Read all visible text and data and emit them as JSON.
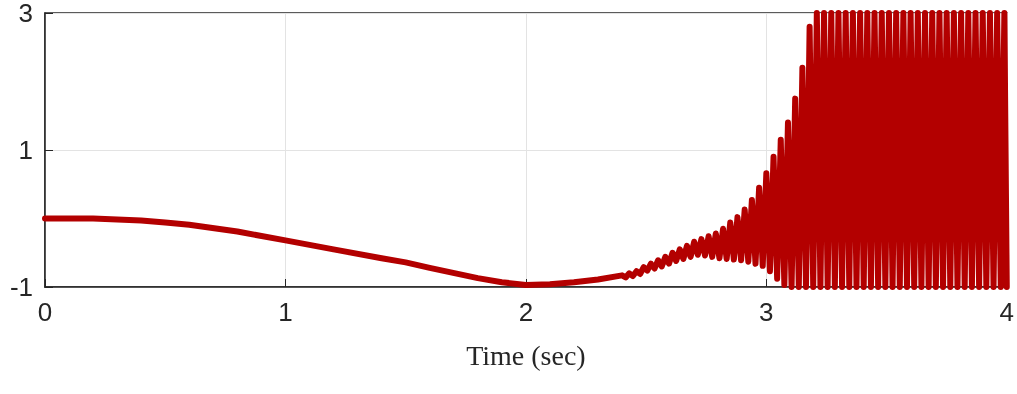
{
  "chart_data": {
    "type": "line",
    "xlabel": "Time (sec)",
    "x": [
      0,
      0.2,
      0.4,
      0.5,
      0.6,
      0.8,
      1.0,
      1.2,
      1.4,
      1.5,
      1.6,
      1.8,
      1.9,
      2.0,
      2.1,
      2.2,
      2.3,
      2.4,
      2.415,
      2.43,
      2.445,
      2.46,
      2.475,
      2.49,
      2.505,
      2.52,
      2.535,
      2.55,
      2.565,
      2.58,
      2.595,
      2.61,
      2.625,
      2.64,
      2.655,
      2.67,
      2.685,
      2.7,
      2.715,
      2.73,
      2.745,
      2.76,
      2.775,
      2.79,
      2.805,
      2.82,
      2.835,
      2.85,
      2.865,
      2.88,
      2.895,
      2.91,
      2.925,
      2.94,
      2.955,
      2.97,
      2.985,
      3.0,
      3.015,
      3.03,
      3.045,
      3.06,
      3.075,
      3.09,
      3.105,
      3.12,
      3.135,
      3.15,
      3.165,
      3.18,
      3.195,
      3.21,
      3.225,
      3.24,
      3.255,
      3.27,
      3.285,
      3.3,
      3.315,
      3.33,
      3.345,
      3.36,
      3.375,
      3.39,
      3.405,
      3.42,
      3.435,
      3.45,
      3.465,
      3.48,
      3.495,
      3.51,
      3.525,
      3.54,
      3.555,
      3.57,
      3.585,
      3.6,
      3.615,
      3.63,
      3.645,
      3.66,
      3.675,
      3.69,
      3.705,
      3.72,
      3.735,
      3.75,
      3.765,
      3.78,
      3.795,
      3.81,
      3.825,
      3.84,
      3.855,
      3.87,
      3.885,
      3.9,
      3.915,
      3.93,
      3.945,
      3.96,
      3.975,
      3.99,
      4.0
    ],
    "series": [
      {
        "color": "#b30000",
        "values": [
          0,
          0,
          -0.03,
          -0.06,
          -0.09,
          -0.19,
          -0.32,
          -0.45,
          -0.58,
          -0.64,
          -0.72,
          -0.87,
          -0.93,
          -0.97,
          -0.96,
          -0.93,
          -0.89,
          -0.83,
          -0.86,
          -0.8,
          -0.84,
          -0.77,
          -0.81,
          -0.71,
          -0.76,
          -0.66,
          -0.73,
          -0.61,
          -0.7,
          -0.56,
          -0.66,
          -0.5,
          -0.62,
          -0.45,
          -0.59,
          -0.4,
          -0.56,
          -0.34,
          -0.53,
          -0.3,
          -0.54,
          -0.26,
          -0.56,
          -0.22,
          -0.58,
          -0.15,
          -0.59,
          -0.06,
          -0.6,
          0.02,
          -0.61,
          0.13,
          -0.63,
          0.27,
          -0.66,
          0.45,
          -0.69,
          0.66,
          -0.77,
          0.9,
          -0.88,
          1.15,
          -0.97,
          1.4,
          -1,
          1.75,
          -1,
          2.2,
          -1,
          2.8,
          -1,
          3,
          -1,
          3,
          -1,
          3,
          -1,
          3,
          -1,
          3,
          -1,
          3,
          -1,
          3,
          -1,
          3,
          -1,
          3,
          -1,
          3,
          -1,
          3,
          -1,
          3,
          -1,
          3,
          -1,
          3,
          -1,
          3,
          -1,
          3,
          -1,
          3,
          -1,
          3,
          -1,
          3,
          -1,
          3,
          -1,
          3,
          -1,
          3,
          -1,
          3,
          -1,
          3,
          -1,
          3,
          -1,
          3,
          -1,
          3,
          -1
        ]
      }
    ],
    "xlim": [
      0,
      4
    ],
    "xticks": [
      0,
      1,
      2,
      3,
      4
    ],
    "ylim": [
      -1,
      3
    ],
    "yticks": [
      -1,
      1,
      3
    ],
    "grid": true,
    "line_style": "solid",
    "marker": "none"
  }
}
